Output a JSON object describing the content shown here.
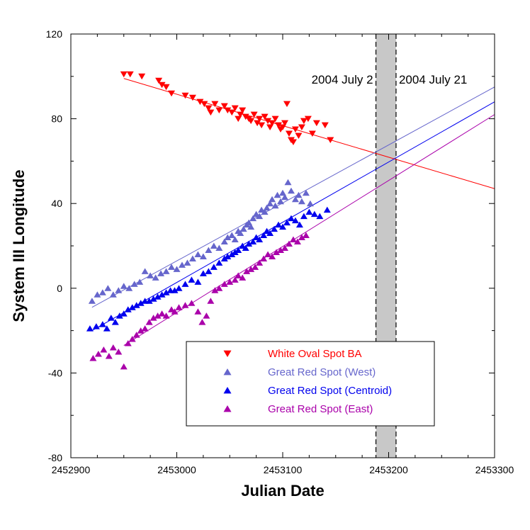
{
  "chart_data": {
    "type": "scatter",
    "xlabel": "Julian Date",
    "ylabel": "System III Longitude",
    "xlim": [
      2452900,
      2453300
    ],
    "ylim": [
      -80,
      120
    ],
    "x_ticks": [
      2452900,
      2453000,
      2453100,
      2453200,
      2453300
    ],
    "x_tick_labels": [
      "2452900",
      "2453000",
      "2453100",
      "2453200",
      "2453300"
    ],
    "y_ticks": [
      -80,
      -40,
      0,
      40,
      80,
      120
    ],
    "y_tick_labels": [
      "-80",
      "-40",
      "0",
      "40",
      "80",
      "120"
    ],
    "grid": false,
    "legend_position": "bottom-center",
    "shaded_band": {
      "x_start": 2453188,
      "x_end": 2453207,
      "color": "#c8c8c8"
    },
    "annotations": [
      {
        "text": "2004  July 2",
        "x": 2453188
      },
      {
        "text": "2004  July 21",
        "x": 2453207
      }
    ],
    "series": [
      {
        "name": "White Oval Spot BA",
        "color": "#ff0000",
        "marker": "triangle-down",
        "fit": {
          "x": [
            2452950,
            2453300
          ],
          "y": [
            99,
            47
          ]
        },
        "points": [
          [
            2452950,
            101
          ],
          [
            2452956,
            101
          ],
          [
            2452967,
            100
          ],
          [
            2452983,
            98
          ],
          [
            2452986,
            96
          ],
          [
            2452990,
            95
          ],
          [
            2452995,
            92
          ],
          [
            2453008,
            91
          ],
          [
            2453015,
            90
          ],
          [
            2453022,
            88
          ],
          [
            2453026,
            87
          ],
          [
            2453030,
            85
          ],
          [
            2453032,
            83
          ],
          [
            2453036,
            87
          ],
          [
            2453040,
            84
          ],
          [
            2453045,
            86
          ],
          [
            2453048,
            84
          ],
          [
            2453052,
            83
          ],
          [
            2453055,
            85
          ],
          [
            2453058,
            80
          ],
          [
            2453060,
            82
          ],
          [
            2453062,
            84
          ],
          [
            2453065,
            81
          ],
          [
            2453068,
            80
          ],
          [
            2453070,
            79
          ],
          [
            2453073,
            82
          ],
          [
            2453076,
            78
          ],
          [
            2453078,
            80
          ],
          [
            2453080,
            77
          ],
          [
            2453083,
            81
          ],
          [
            2453086,
            79
          ],
          [
            2453088,
            76
          ],
          [
            2453090,
            78
          ],
          [
            2453093,
            80
          ],
          [
            2453096,
            77
          ],
          [
            2453098,
            75
          ],
          [
            2453100,
            76
          ],
          [
            2453102,
            78
          ],
          [
            2453104,
            87
          ],
          [
            2453106,
            73
          ],
          [
            2453108,
            70
          ],
          [
            2453110,
            69
          ],
          [
            2453112,
            75
          ],
          [
            2453115,
            72
          ],
          [
            2453118,
            76
          ],
          [
            2453120,
            79
          ],
          [
            2453124,
            80
          ],
          [
            2453128,
            73
          ],
          [
            2453132,
            78
          ],
          [
            2453140,
            77
          ],
          [
            2453145,
            70
          ]
        ]
      },
      {
        "name": "Great Red Spot (West)",
        "color": "#6666cc",
        "marker": "triangle-up",
        "fit": {
          "x": [
            2452920,
            2453300
          ],
          "y": [
            -9,
            95
          ]
        },
        "points": [
          [
            2452920,
            -6
          ],
          [
            2452925,
            -3
          ],
          [
            2452930,
            -2
          ],
          [
            2452935,
            0
          ],
          [
            2452940,
            -3
          ],
          [
            2452945,
            -1
          ],
          [
            2452950,
            1
          ],
          [
            2452955,
            0
          ],
          [
            2452960,
            2
          ],
          [
            2452965,
            3
          ],
          [
            2452970,
            8
          ],
          [
            2452975,
            6
          ],
          [
            2452980,
            5
          ],
          [
            2452985,
            7
          ],
          [
            2452990,
            8
          ],
          [
            2452995,
            10
          ],
          [
            2453000,
            9
          ],
          [
            2453005,
            11
          ],
          [
            2453010,
            12
          ],
          [
            2453015,
            14
          ],
          [
            2453020,
            16
          ],
          [
            2453025,
            15
          ],
          [
            2453030,
            18
          ],
          [
            2453035,
            20
          ],
          [
            2453040,
            19
          ],
          [
            2453045,
            22
          ],
          [
            2453048,
            24
          ],
          [
            2453052,
            25
          ],
          [
            2453055,
            23
          ],
          [
            2453058,
            27
          ],
          [
            2453060,
            26
          ],
          [
            2453063,
            28
          ],
          [
            2453066,
            30
          ],
          [
            2453068,
            31
          ],
          [
            2453070,
            29
          ],
          [
            2453072,
            33
          ],
          [
            2453075,
            35
          ],
          [
            2453078,
            34
          ],
          [
            2453080,
            37
          ],
          [
            2453083,
            36
          ],
          [
            2453085,
            38
          ],
          [
            2453088,
            40
          ],
          [
            2453090,
            42
          ],
          [
            2453093,
            39
          ],
          [
            2453095,
            44
          ],
          [
            2453098,
            41
          ],
          [
            2453100,
            45
          ],
          [
            2453102,
            43
          ],
          [
            2453105,
            50
          ],
          [
            2453108,
            46
          ],
          [
            2453112,
            42
          ],
          [
            2453115,
            44
          ],
          [
            2453118,
            41
          ],
          [
            2453122,
            45
          ],
          [
            2453126,
            40
          ]
        ]
      },
      {
        "name": "Great Red Spot (Centroid)",
        "color": "#0000ee",
        "marker": "triangle-up",
        "fit": {
          "x": [
            2452920,
            2453300
          ],
          "y": [
            -20,
            88
          ]
        },
        "points": [
          [
            2452918,
            -19
          ],
          [
            2452924,
            -18
          ],
          [
            2452930,
            -17
          ],
          [
            2452934,
            -19
          ],
          [
            2452938,
            -14
          ],
          [
            2452942,
            -16
          ],
          [
            2452946,
            -13
          ],
          [
            2452950,
            -12
          ],
          [
            2452954,
            -10
          ],
          [
            2452958,
            -9
          ],
          [
            2452962,
            -8
          ],
          [
            2452966,
            -7
          ],
          [
            2452970,
            -6
          ],
          [
            2452974,
            -6
          ],
          [
            2452978,
            -5
          ],
          [
            2452982,
            -4
          ],
          [
            2452986,
            -3
          ],
          [
            2452990,
            -2
          ],
          [
            2452994,
            -1
          ],
          [
            2452998,
            -1
          ],
          [
            2453002,
            0
          ],
          [
            2453008,
            2
          ],
          [
            2453014,
            4
          ],
          [
            2453020,
            3
          ],
          [
            2453025,
            7
          ],
          [
            2453030,
            8
          ],
          [
            2453035,
            10
          ],
          [
            2453040,
            12
          ],
          [
            2453045,
            14
          ],
          [
            2453048,
            15
          ],
          [
            2453052,
            16
          ],
          [
            2453055,
            17
          ],
          [
            2453058,
            18
          ],
          [
            2453062,
            20
          ],
          [
            2453065,
            19
          ],
          [
            2453068,
            21
          ],
          [
            2453072,
            22
          ],
          [
            2453075,
            24
          ],
          [
            2453078,
            23
          ],
          [
            2453082,
            25
          ],
          [
            2453085,
            27
          ],
          [
            2453088,
            26
          ],
          [
            2453092,
            28
          ],
          [
            2453096,
            30
          ],
          [
            2453100,
            29
          ],
          [
            2453104,
            31
          ],
          [
            2453108,
            33
          ],
          [
            2453112,
            32
          ],
          [
            2453116,
            30
          ],
          [
            2453120,
            34
          ],
          [
            2453125,
            36
          ],
          [
            2453130,
            35
          ],
          [
            2453135,
            34
          ],
          [
            2453142,
            37
          ]
        ]
      },
      {
        "name": "Great Red Spot (East)",
        "color": "#aa00aa",
        "marker": "triangle-up",
        "fit": {
          "x": [
            2452950,
            2453300
          ],
          "y": [
            -27,
            82
          ]
        },
        "points": [
          [
            2452921,
            -33
          ],
          [
            2452926,
            -31
          ],
          [
            2452931,
            -29
          ],
          [
            2452936,
            -32
          ],
          [
            2452940,
            -28
          ],
          [
            2452945,
            -30
          ],
          [
            2452950,
            -37
          ],
          [
            2452954,
            -26
          ],
          [
            2452958,
            -24
          ],
          [
            2452962,
            -22
          ],
          [
            2452966,
            -20
          ],
          [
            2452970,
            -19
          ],
          [
            2452974,
            -16
          ],
          [
            2452978,
            -14
          ],
          [
            2452982,
            -13
          ],
          [
            2452986,
            -12
          ],
          [
            2452990,
            -13
          ],
          [
            2452995,
            -10
          ],
          [
            2452998,
            -11
          ],
          [
            2453002,
            -9
          ],
          [
            2453008,
            -8
          ],
          [
            2453014,
            -7
          ],
          [
            2453020,
            -11
          ],
          [
            2453024,
            -16
          ],
          [
            2453028,
            -13
          ],
          [
            2453032,
            -6
          ],
          [
            2453036,
            -1
          ],
          [
            2453040,
            0
          ],
          [
            2453045,
            2
          ],
          [
            2453050,
            3
          ],
          [
            2453055,
            4
          ],
          [
            2453058,
            6
          ],
          [
            2453062,
            5
          ],
          [
            2453066,
            8
          ],
          [
            2453070,
            9
          ],
          [
            2453074,
            10
          ],
          [
            2453078,
            12
          ],
          [
            2453082,
            14
          ],
          [
            2453086,
            16
          ],
          [
            2453090,
            15
          ],
          [
            2453094,
            17
          ],
          [
            2453098,
            18
          ],
          [
            2453102,
            19
          ],
          [
            2453106,
            21
          ],
          [
            2453110,
            23
          ],
          [
            2453114,
            22
          ],
          [
            2453118,
            24
          ],
          [
            2453122,
            25
          ]
        ]
      }
    ]
  }
}
